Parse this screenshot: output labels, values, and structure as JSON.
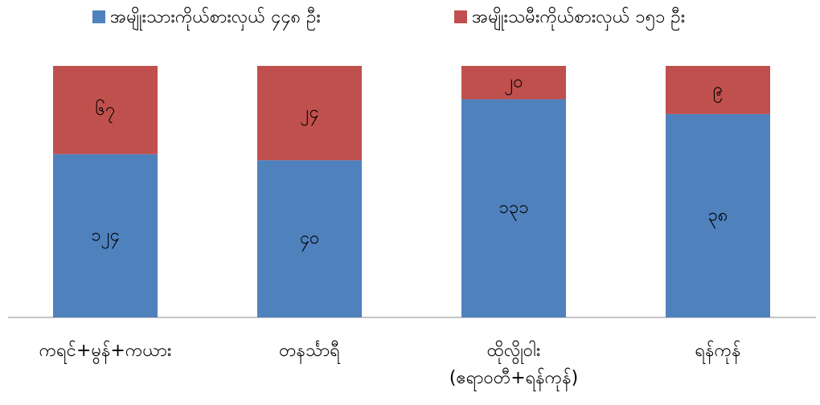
{
  "chart_data": {
    "type": "bar",
    "stacked": "percent",
    "categories": [
      "ကရင်+မွန်+ကယား",
      "တနင်္သာရီ",
      "ထိုလွိုဝါး\n(ဧရာဝတီ+ရန်ကုန်)",
      "ရန်ကုန်"
    ],
    "series": [
      {
        "name": "အမျိုးသားကိုယ်စားလှယ် ၄၄၈ ဦး",
        "color": "#4f81bd",
        "values": [
          124,
          40,
          131,
          38
        ],
        "value_labels": [
          "၁၂၄",
          "၄၀",
          "၁၃၁",
          "၃၈"
        ]
      },
      {
        "name": "အမျိုးသမီးကိုယ်စားလှယ် ၁၅၁ ဦး",
        "color": "#c0504d",
        "values": [
          67,
          24,
          20,
          9
        ],
        "value_labels": [
          "၆၇",
          "၂၄",
          "၂၀",
          "၉"
        ]
      }
    ],
    "legend": "top"
  }
}
